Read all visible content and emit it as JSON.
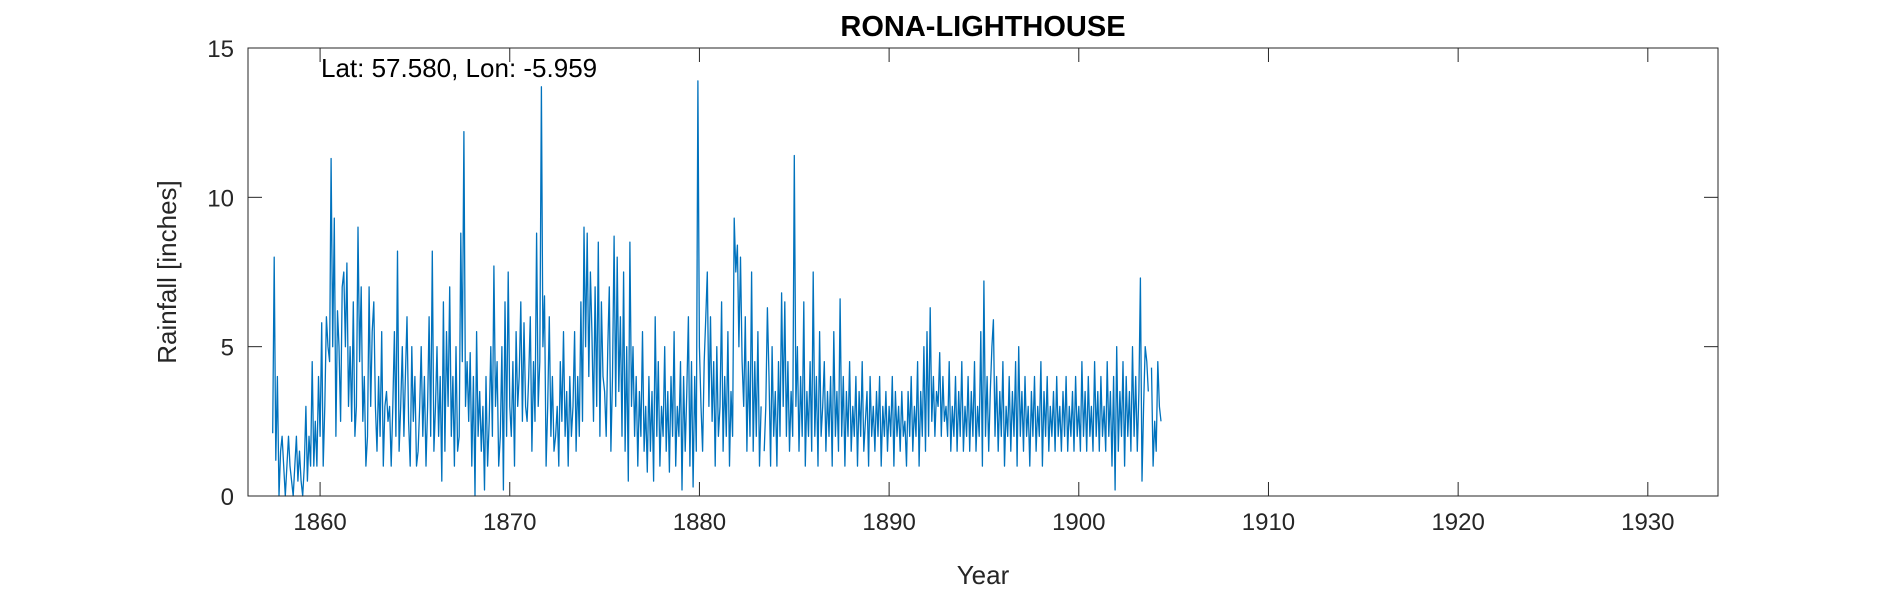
{
  "chart_data": {
    "type": "line",
    "title": "RONA-LIGHTHOUSE",
    "annotation": "Lat: 57.580, Lon: -5.959",
    "xlabel": "Year",
    "ylabel": "Rainfall [inches]",
    "xlim": [
      1856.2,
      1933.7
    ],
    "ylim": [
      0,
      15
    ],
    "xticks": [
      1860,
      1870,
      1880,
      1890,
      1900,
      1910,
      1920,
      1930
    ],
    "yticks": [
      0,
      5,
      10,
      15
    ],
    "grid": false,
    "line_color": "#0072BD",
    "series": [
      {
        "start_year": 1857.5,
        "values": [
          2.1,
          8.0,
          1.2,
          4.0,
          0.0,
          1.5,
          2.0,
          1.0,
          0.0,
          1.0,
          2.0,
          1.0,
          0.5,
          0.0,
          1.0,
          2.0,
          0.5,
          1.5,
          0.5,
          0.0,
          1.0,
          3.0,
          0.5,
          2.0,
          1.0,
          4.5,
          1.0,
          2.5,
          1.0,
          4.0,
          2.0,
          5.8,
          1.0,
          3.0,
          6.0,
          5.0,
          4.5,
          11.3,
          5.0,
          9.3,
          2.0,
          6.2,
          5.0,
          2.5,
          7.0,
          7.5,
          5.0,
          7.8,
          3.0,
          5.0,
          2.5,
          6.5,
          2.0,
          3.0,
          9.0,
          4.5,
          7.0,
          2.5,
          4.0,
          1.0,
          2.0,
          7.0,
          3.0,
          5.5,
          6.5,
          3.0,
          1.5,
          4.0,
          2.0,
          5.5,
          1.0,
          3.0,
          3.5,
          2.5,
          3.0,
          1.0,
          3.0,
          5.5,
          2.0,
          8.2,
          1.5,
          3.0,
          5.0,
          2.0,
          4.0,
          6.0,
          2.5,
          1.0,
          5.0,
          2.5,
          4.0,
          1.0,
          1.5,
          3.0,
          5.0,
          2.0,
          4.0,
          1.0,
          3.0,
          6.0,
          2.0,
          8.2,
          1.5,
          3.0,
          5.0,
          2.0,
          4.0,
          0.5,
          6.5,
          1.5,
          5.5,
          3.0,
          7.0,
          2.0,
          4.0,
          1.0,
          5.0,
          1.5,
          2.0,
          8.8,
          4.5,
          12.2,
          3.0,
          4.5,
          2.5,
          4.8,
          1.0,
          4.0,
          0.0,
          5.5,
          2.0,
          3.5,
          1.5,
          3.0,
          0.2,
          4.0,
          1.0,
          2.5,
          5.0,
          2.0,
          7.7,
          3.0,
          4.5,
          1.0,
          2.0,
          5.0,
          0.2,
          6.5,
          2.0,
          7.5,
          3.0,
          2.0,
          4.5,
          1.0,
          5.5,
          3.0,
          4.0,
          6.5,
          2.5,
          5.8,
          3.0,
          2.5,
          4.0,
          6.0,
          1.5,
          4.5,
          2.5,
          8.8,
          3.0,
          4.5,
          13.7,
          5.0,
          6.7,
          1.0,
          3.0,
          6.0,
          2.0,
          4.0,
          1.5,
          2.0,
          3.0,
          1.0,
          4.5,
          2.5,
          5.5,
          2.0,
          3.5,
          1.0,
          4.0,
          2.0,
          3.0,
          5.5,
          1.5,
          4.0,
          2.0,
          6.5,
          2.5,
          9.0,
          5.0,
          8.8,
          4.0,
          7.5,
          5.5,
          2.5,
          7.0,
          3.0,
          8.5,
          2.0,
          6.5,
          4.0,
          3.5,
          2.0,
          5.0,
          7.0,
          1.5,
          4.0,
          8.7,
          3.0,
          8.0,
          3.5,
          6.0,
          2.0,
          7.5,
          1.5,
          5.0,
          0.5,
          8.5,
          3.0,
          5.0,
          2.0,
          4.0,
          1.0,
          3.5,
          2.0,
          5.5,
          1.5,
          3.0,
          0.8,
          4.0,
          1.5,
          3.5,
          0.5,
          6.0,
          2.0,
          4.5,
          1.0,
          3.0,
          2.0,
          5.0,
          1.5,
          3.5,
          0.8,
          4.0,
          2.0,
          5.5,
          1.0,
          3.0,
          2.0,
          4.5,
          0.2,
          4.0,
          1.5,
          3.5,
          6.0,
          1.0,
          4.5,
          0.3,
          4.0,
          1.5,
          13.9,
          5.0,
          3.0,
          1.5,
          4.5,
          6.0,
          7.5,
          3.0,
          6.0,
          2.5,
          4.5,
          1.0,
          5.0,
          2.0,
          3.0,
          6.5,
          1.5,
          4.0,
          2.0,
          5.5,
          1.0,
          3.5,
          2.0,
          9.3,
          7.5,
          8.4,
          5.0,
          8.0,
          4.5,
          3.0,
          6.0,
          1.5,
          4.5,
          2.0,
          7.5,
          1.5,
          4.5,
          2.0,
          5.5,
          1.0,
          3.0,
          null,
          1.5,
          3.0,
          6.3,
          4.0,
          1.0,
          5.0,
          2.0,
          3.5,
          1.0,
          4.5,
          2.0,
          6.8,
          3.0,
          6.5,
          2.0,
          4.5,
          1.5,
          3.5,
          2.0,
          11.4,
          3.0,
          5.0,
          1.5,
          4.0,
          2.0,
          6.5,
          1.0,
          3.5,
          2.0,
          4.5,
          1.5,
          7.5,
          2.0,
          4.0,
          1.0,
          5.5,
          2.0,
          3.0,
          4.5,
          1.5,
          3.5,
          2.0,
          4.0,
          1.0,
          5.5,
          2.0,
          3.5,
          1.5,
          6.6,
          2.0,
          4.0,
          1.0,
          3.5,
          2.0,
          4.5,
          1.5,
          3.0,
          2.0,
          4.0,
          1.0,
          3.5,
          2.0,
          4.5,
          1.5,
          2.5,
          3.5,
          1.0,
          4.0,
          2.0,
          3.0,
          1.5,
          3.5,
          2.0,
          4.0,
          1.0,
          3.0,
          2.0,
          3.5,
          1.5,
          3.0,
          2.0,
          4.0,
          1.0,
          3.5,
          2.0,
          3.0,
          1.5,
          3.5,
          2.0,
          2.5,
          1.0,
          3.5,
          2.0,
          4.0,
          1.5,
          3.0,
          2.0,
          4.5,
          1.0,
          3.5,
          2.0,
          5.0,
          1.5,
          5.5,
          2.0,
          6.3,
          2.5,
          4.0,
          2.0,
          3.5,
          3.0,
          4.8,
          2.0,
          4.0,
          2.5,
          3.0,
          2.0,
          4.5,
          1.5,
          3.0,
          2.0,
          4.0,
          1.5,
          3.5,
          2.0,
          4.5,
          1.5,
          3.0,
          2.0,
          4.0,
          1.5,
          3.5,
          2.0,
          4.5,
          1.5,
          3.0,
          2.0,
          5.5,
          1.0,
          7.2,
          2.0,
          4.0,
          1.5,
          3.5,
          5.0,
          5.9,
          2.0,
          4.0,
          1.5,
          3.5,
          2.0,
          4.5,
          1.0,
          3.0,
          2.0,
          4.0,
          1.5,
          3.5,
          2.0,
          4.5,
          1.0,
          5.0,
          2.0,
          3.5,
          1.5,
          4.0,
          2.0,
          3.0,
          1.0,
          3.5,
          2.0,
          4.0,
          1.5,
          3.0,
          2.0,
          4.5,
          1.0,
          3.5,
          2.0,
          4.0,
          1.5,
          3.0,
          2.0,
          3.5,
          1.5,
          4.0,
          2.0,
          3.0,
          1.5,
          3.5,
          2.0,
          4.0,
          1.5,
          3.0,
          2.0,
          3.5,
          1.5,
          4.0,
          2.0,
          3.0,
          1.5,
          4.5,
          2.0,
          3.5,
          1.5,
          4.0,
          2.0,
          3.0,
          1.5,
          4.5,
          2.0,
          3.5,
          1.5,
          4.0,
          2.0,
          3.0,
          1.5,
          4.5,
          2.0,
          3.5,
          1.0,
          4.0,
          0.2,
          5.0,
          1.5,
          3.5,
          2.0,
          4.5,
          1.0,
          4.0,
          2.0,
          3.5,
          1.5,
          5.0,
          2.0,
          4.0,
          1.5,
          3.5,
          7.3,
          0.5,
          3.0,
          5.0,
          4.5,
          3.5,
          null,
          4.3,
          1.0,
          2.5,
          1.5,
          4.5,
          3.0,
          2.5
        ]
      }
    ]
  }
}
